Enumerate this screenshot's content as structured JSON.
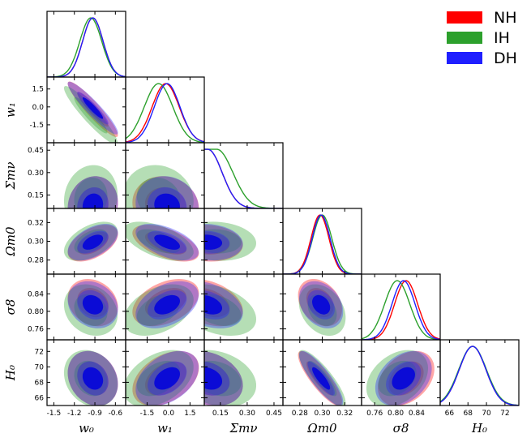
{
  "chart_data": {
    "type": "triangle-corner-plot",
    "params": [
      {
        "key": "w0",
        "label": "w₀",
        "range": [
          -1.6,
          -0.45
        ],
        "ticks": [
          "-1.5",
          "-1.2",
          "-0.9",
          "-0.6"
        ],
        "tickvals": [
          -1.5,
          -1.2,
          -0.9,
          -0.6
        ]
      },
      {
        "key": "w1",
        "label": "w₁",
        "range": [
          -3.0,
          2.5
        ],
        "ticks": [
          "-1.5",
          "0.0",
          "1.5"
        ],
        "tickvals": [
          -1.5,
          0.0,
          1.5
        ]
      },
      {
        "key": "sum_mnu",
        "label": "Σmν",
        "range": [
          0.06,
          0.5
        ],
        "ticks": [
          "0.15",
          "0.30",
          "0.45"
        ],
        "tickvals": [
          0.15,
          0.3,
          0.45
        ]
      },
      {
        "key": "omega_m0",
        "label": "Ωm0",
        "range": [
          0.265,
          0.335
        ],
        "ticks": [
          "0.28",
          "0.30",
          "0.32"
        ],
        "tickvals": [
          0.28,
          0.3,
          0.32
        ]
      },
      {
        "key": "sigma8",
        "label": "σ8",
        "range": [
          0.735,
          0.885
        ],
        "ticks": [
          "0.76",
          "0.80",
          "0.84"
        ],
        "tickvals": [
          0.76,
          0.8,
          0.84
        ]
      },
      {
        "key": "H0",
        "label": "H₀",
        "range": [
          65.0,
          73.5
        ],
        "ticks": [
          "66",
          "68",
          "70",
          "72"
        ],
        "tickvals": [
          66,
          68,
          70,
          72
        ]
      }
    ],
    "series": [
      {
        "name": "NH",
        "color": "#ff0000",
        "means": [
          -0.93,
          -0.2,
          0.08,
          0.298,
          0.82,
          68.5
        ],
        "sigmas": [
          0.15,
          0.95,
          0.08,
          0.008,
          0.022,
          1.45
        ],
        "corr": 0.9
      },
      {
        "name": "IH",
        "color": "#2ca02c",
        "means": [
          -0.96,
          -0.7,
          0.13,
          0.3,
          0.803,
          68.5
        ],
        "sigmas": [
          0.16,
          1.0,
          0.09,
          0.0085,
          0.024,
          1.5
        ],
        "corr": 0.9
      },
      {
        "name": "DH",
        "color": "#1f1fff",
        "means": [
          -0.93,
          -0.1,
          0.08,
          0.299,
          0.815,
          68.5
        ],
        "sigmas": [
          0.15,
          0.9,
          0.08,
          0.008,
          0.022,
          1.45
        ],
        "corr": 0.9
      }
    ],
    "correlations": {
      "1,0": -0.93,
      "2,0": 0.1,
      "2,1": -0.1,
      "3,0": 0.5,
      "3,1": -0.55,
      "3,2": -0.1,
      "4,0": -0.2,
      "4,1": 0.4,
      "4,2": -0.35,
      "4,3": -0.3,
      "5,0": -0.2,
      "5,1": 0.4,
      "5,2": -0.25,
      "5,3": -0.85,
      "5,4": 0.35
    },
    "legend_position": "top-right"
  }
}
